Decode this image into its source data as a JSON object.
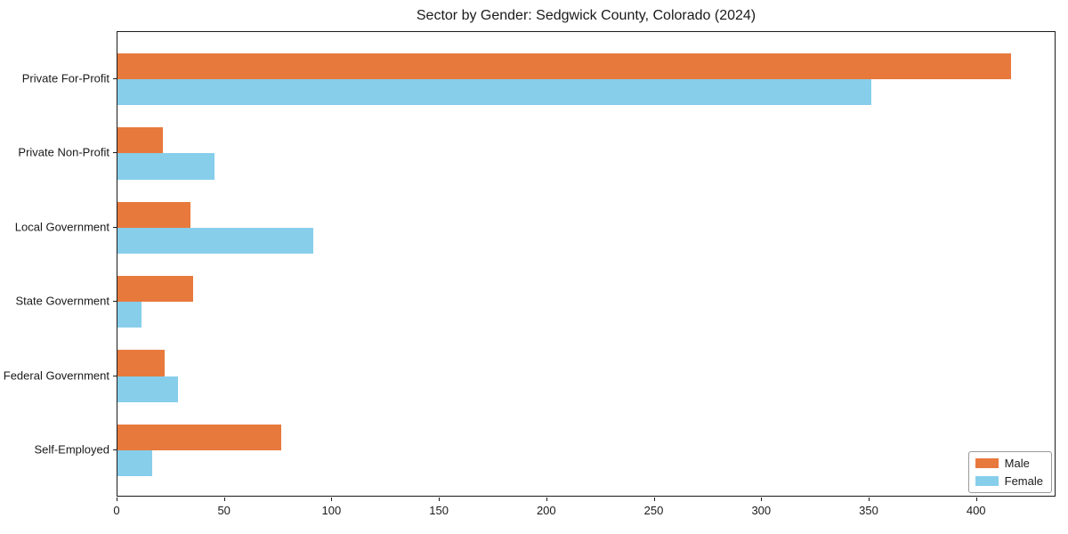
{
  "chart_data": {
    "type": "bar",
    "orientation": "horizontal",
    "title": "Sector by Gender: Sedgwick County, Colorado (2024)",
    "categories": [
      "Private For-Profit",
      "Private Non-Profit",
      "Local Government",
      "State Government",
      "Federal Government",
      "Self-Employed"
    ],
    "series": [
      {
        "name": "Male",
        "color": "#e8793d",
        "values": [
          416,
          21,
          34,
          35,
          22,
          76
        ]
      },
      {
        "name": "Female",
        "color": "#87ceeb",
        "values": [
          351,
          45,
          91,
          11,
          28,
          16
        ]
      }
    ],
    "xlabel": "",
    "ylabel": "",
    "xlim": [
      0,
      437
    ],
    "x_ticks": [
      0,
      50,
      100,
      150,
      200,
      250,
      300,
      350,
      400
    ],
    "grid": false,
    "legend_position": "lower right",
    "text_color": "#1a1a1a",
    "background_color": "#ffffff"
  }
}
